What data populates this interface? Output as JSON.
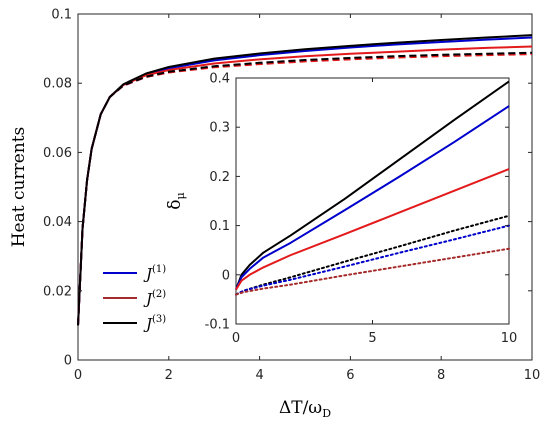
{
  "chart_data": [
    {
      "id": "main",
      "type": "line",
      "xlabel": "ΔT/ω",
      "xlabel_sub": "D",
      "ylabel": "Heat currents",
      "xlim": [
        0,
        10
      ],
      "ylim": [
        0,
        0.1
      ],
      "xticks": [
        "0",
        "2",
        "4",
        "6",
        "8",
        "10"
      ],
      "yticks": [
        "0",
        "0.02",
        "0.04",
        "0.06",
        "0.08",
        "0.1"
      ],
      "legend": {
        "placement": "lower-left",
        "entries": [
          {
            "base": "J",
            "sup": "(1)",
            "color": "#0000cc"
          },
          {
            "base": "J",
            "sup": "(2)",
            "color": "#a52a2a"
          },
          {
            "base": "J",
            "sup": "(3)",
            "color": "#000000"
          }
        ]
      },
      "series": [
        {
          "style": "solid",
          "color": "#0000cc",
          "x": [
            0,
            0.1,
            0.2,
            0.3,
            0.5,
            0.7,
            1,
            1.5,
            2,
            3,
            4,
            5,
            6,
            7,
            8,
            9,
            10
          ],
          "y": [
            0.01,
            0.038,
            0.052,
            0.061,
            0.071,
            0.076,
            0.0795,
            0.0825,
            0.0843,
            0.0866,
            0.0881,
            0.0893,
            0.0903,
            0.0912,
            0.0919,
            0.0926,
            0.0932
          ]
        },
        {
          "style": "solid",
          "color": "#e31a1c",
          "x": [
            0,
            0.1,
            0.2,
            0.3,
            0.5,
            0.7,
            1,
            1.5,
            2,
            3,
            4,
            5,
            6,
            7,
            8,
            9,
            10
          ],
          "y": [
            0.01,
            0.038,
            0.052,
            0.061,
            0.071,
            0.076,
            0.0795,
            0.0823,
            0.0838,
            0.0857,
            0.0869,
            0.0878,
            0.0885,
            0.0891,
            0.0897,
            0.0902,
            0.0906
          ]
        },
        {
          "style": "solid",
          "color": "#000000",
          "x": [
            0,
            0.1,
            0.2,
            0.3,
            0.5,
            0.7,
            1,
            1.5,
            2,
            3,
            4,
            5,
            6,
            7,
            8,
            9,
            10
          ],
          "y": [
            0.01,
            0.038,
            0.052,
            0.061,
            0.071,
            0.076,
            0.0797,
            0.0828,
            0.0847,
            0.0871,
            0.0886,
            0.0898,
            0.0908,
            0.0917,
            0.0925,
            0.0932,
            0.0939
          ]
        },
        {
          "style": "dashed",
          "color": "#0000cc",
          "x": [
            0,
            0.1,
            0.2,
            0.3,
            0.5,
            0.7,
            1,
            1.5,
            2,
            3,
            4,
            5,
            6,
            7,
            8,
            9,
            10
          ],
          "y": [
            0.01,
            0.038,
            0.052,
            0.061,
            0.071,
            0.076,
            0.0793,
            0.0818,
            0.0832,
            0.0848,
            0.0858,
            0.0866,
            0.0872,
            0.0877,
            0.0881,
            0.0884,
            0.0887
          ]
        },
        {
          "style": "dashed",
          "color": "#e31a1c",
          "x": [
            0,
            0.1,
            0.2,
            0.3,
            0.5,
            0.7,
            1,
            1.5,
            2,
            3,
            4,
            5,
            6,
            7,
            8,
            9,
            10
          ],
          "y": [
            0.01,
            0.038,
            0.052,
            0.061,
            0.071,
            0.076,
            0.0793,
            0.0818,
            0.0831,
            0.0846,
            0.0855,
            0.0863,
            0.0869,
            0.0874,
            0.0878,
            0.0881,
            0.0884
          ]
        },
        {
          "style": "dashed",
          "color": "#000000",
          "x": [
            0,
            0.1,
            0.2,
            0.3,
            0.5,
            0.7,
            1,
            1.5,
            2,
            3,
            4,
            5,
            6,
            7,
            8,
            9,
            10
          ],
          "y": [
            0.01,
            0.038,
            0.052,
            0.061,
            0.071,
            0.076,
            0.0794,
            0.0819,
            0.0833,
            0.0849,
            0.0859,
            0.0867,
            0.0873,
            0.0878,
            0.0882,
            0.0885,
            0.0888
          ]
        }
      ]
    },
    {
      "id": "inset",
      "type": "line",
      "ylabel": "δ",
      "ylabel_sub": "μ",
      "xlim": [
        0,
        10
      ],
      "ylim": [
        -0.1,
        0.4
      ],
      "xticks": [
        "0",
        "5",
        "10"
      ],
      "yticks": [
        "-0.1",
        "0",
        "0.1",
        "0.2",
        "0.3",
        "0.4"
      ],
      "series": [
        {
          "style": "solid",
          "color": "#000000",
          "x": [
            0,
            0.2,
            0.5,
            1,
            2,
            4,
            6,
            8,
            10
          ],
          "y": [
            -0.03,
            0.0,
            0.02,
            0.045,
            0.08,
            0.155,
            0.235,
            0.315,
            0.393
          ]
        },
        {
          "style": "solid",
          "color": "#0000cc",
          "x": [
            0,
            0.2,
            0.5,
            1,
            2,
            4,
            6,
            8,
            10
          ],
          "y": [
            -0.03,
            -0.005,
            0.012,
            0.035,
            0.065,
            0.132,
            0.2,
            0.27,
            0.343
          ]
        },
        {
          "style": "solid",
          "color": "#e31a1c",
          "x": [
            0,
            0.2,
            0.5,
            1,
            2,
            4,
            6,
            8,
            10
          ],
          "y": [
            -0.03,
            -0.012,
            0.0,
            0.015,
            0.04,
            0.083,
            0.127,
            0.171,
            0.215
          ]
        },
        {
          "style": "dotted",
          "color": "#000000",
          "x": [
            0,
            0.3,
            1,
            2,
            4,
            6,
            8,
            10
          ],
          "y": [
            -0.04,
            -0.032,
            -0.02,
            -0.005,
            0.027,
            0.058,
            0.09,
            0.12
          ]
        },
        {
          "style": "dotted",
          "color": "#0000cc",
          "x": [
            0,
            0.3,
            1,
            2,
            4,
            6,
            8,
            10
          ],
          "y": [
            -0.04,
            -0.032,
            -0.022,
            -0.01,
            0.017,
            0.045,
            0.072,
            0.1
          ]
        },
        {
          "style": "dotted",
          "color": "#a52a2a",
          "x": [
            0,
            0.3,
            1,
            2,
            4,
            6,
            8,
            10
          ],
          "y": [
            -0.04,
            -0.035,
            -0.028,
            -0.02,
            -0.001,
            0.017,
            0.035,
            0.053
          ]
        }
      ]
    }
  ]
}
